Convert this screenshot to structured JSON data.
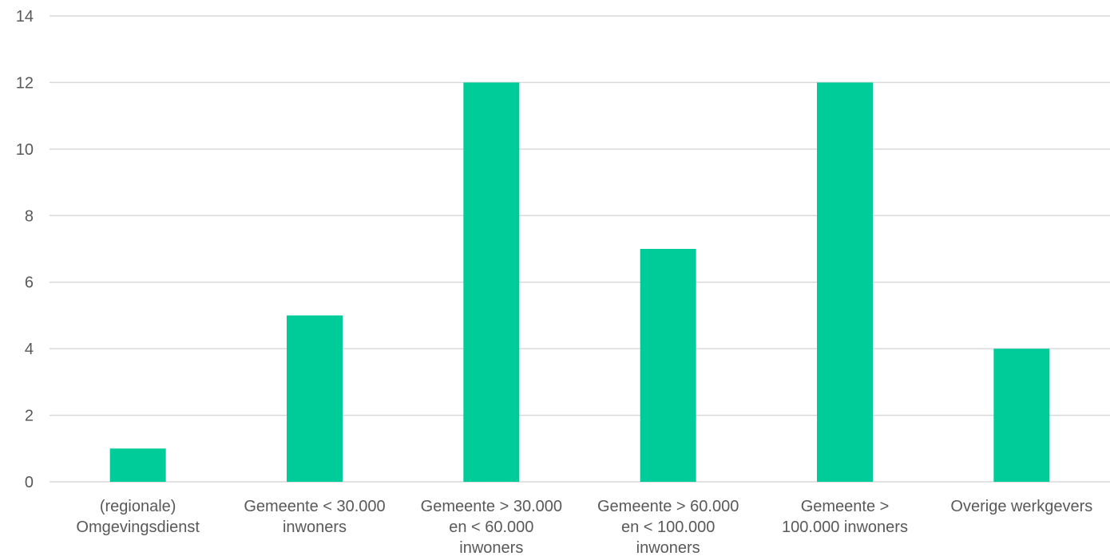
{
  "chart_data": {
    "type": "bar",
    "categories": [
      [
        "(regionale)",
        "Omgevingsdienst"
      ],
      [
        "Gemeente < 30.000",
        "inwoners"
      ],
      [
        "Gemeente > 30.000",
        "en < 60.000",
        "inwoners"
      ],
      [
        "Gemeente > 60.000",
        "en < 100.000",
        "inwoners"
      ],
      [
        "Gemeente >",
        "100.000 inwoners"
      ],
      [
        "Overige werkgevers"
      ]
    ],
    "values": [
      1,
      5,
      12,
      7,
      12,
      4
    ],
    "ylim": [
      0,
      14
    ],
    "yticks": [
      0,
      2,
      4,
      6,
      8,
      10,
      12,
      14
    ],
    "grid": true,
    "bar_color": "#00cc99",
    "grid_color": "#d9d9d9",
    "text_color": "#595959"
  }
}
